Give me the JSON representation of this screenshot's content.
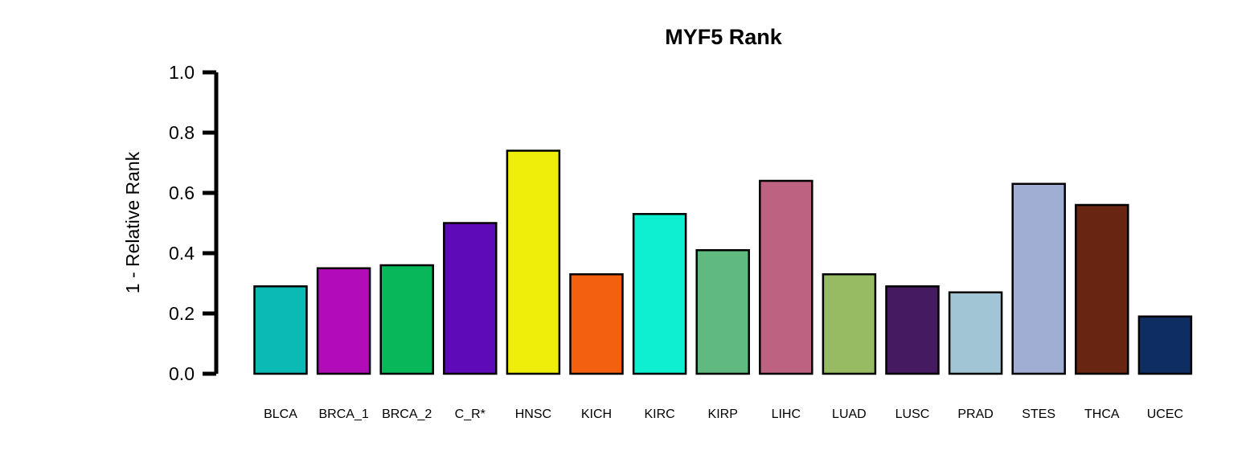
{
  "chart_data": {
    "type": "bar",
    "title": "MYF5 Rank",
    "xlabel": "",
    "ylabel": "1 - Relative Rank",
    "ylim": [
      0,
      1.0
    ],
    "yticks": [
      0.0,
      0.2,
      0.4,
      0.6,
      0.8,
      1.0
    ],
    "ytick_labels": [
      "0.0",
      "0.2",
      "0.4",
      "0.6",
      "0.8",
      "1.0"
    ],
    "categories": [
      "BLCA",
      "BRCA_1",
      "BRCA_2",
      "C_R*",
      "HNSC",
      "KICH",
      "KIRC",
      "KIRP",
      "LIHC",
      "LUAD",
      "LUSC",
      "PRAD",
      "STES",
      "THCA",
      "UCEC"
    ],
    "values": [
      0.29,
      0.35,
      0.36,
      0.5,
      0.74,
      0.33,
      0.53,
      0.41,
      0.64,
      0.33,
      0.29,
      0.27,
      0.63,
      0.56,
      0.19
    ],
    "colors": [
      "#0bbab5",
      "#b20cb8",
      "#08b75a",
      "#5e0ab8",
      "#eeee0a",
      "#f26010",
      "#0eeed0",
      "#60b97f",
      "#bd6280",
      "#97bb62",
      "#461a60",
      "#a1c5d4",
      "#a0aed3",
      "#672512",
      "#0e2e62"
    ],
    "grid": false,
    "legend": "none"
  }
}
